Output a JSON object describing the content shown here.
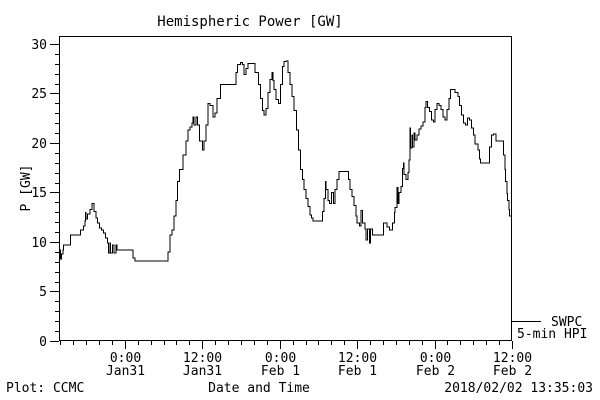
{
  "colors": {
    "line": "#000000",
    "background": "#ffffff",
    "text": "#000000"
  },
  "legend": {
    "source": "SWPC",
    "product": "5-min HPI"
  },
  "footer": {
    "left": "Plot: CCMC",
    "right": "2018/02/02 13:35:03"
  },
  "chart_data": {
    "type": "line",
    "title": "Hemispheric Power [GW]",
    "xlabel": "Date and Time",
    "ylabel": "P [GW]",
    "series_name": "SWPC 5-min HPI",
    "x_unit": "hours since 2018-01-31 00:00",
    "xlim": [
      -10.2,
      60
    ],
    "ylim": [
      0,
      30.8
    ],
    "grid": false,
    "x_ticks": [
      {
        "hours": 0,
        "time": "0:00",
        "date": "Jan31"
      },
      {
        "hours": 12,
        "time": "12:00",
        "date": "Jan31"
      },
      {
        "hours": 24,
        "time": "0:00",
        "date": "Feb 1"
      },
      {
        "hours": 36,
        "time": "12:00",
        "date": "Feb 1"
      },
      {
        "hours": 48,
        "time": "0:00",
        "date": "Feb 2"
      },
      {
        "hours": 60,
        "time": "12:00",
        "date": "Feb 2"
      }
    ],
    "x_minor_tick_step_hours": 2,
    "y_ticks": [
      0,
      5,
      10,
      15,
      20,
      25,
      30
    ],
    "y_minor_tick_step": 1,
    "series": [
      {
        "name": "SWPC 5-min HPI",
        "points": [
          [
            -10.2,
            9.2
          ],
          [
            -10.0,
            8.3
          ],
          [
            -9.8,
            8.8
          ],
          [
            -9.6,
            9.2
          ],
          [
            -9.5,
            9.7
          ],
          [
            -8.5,
            9.7
          ],
          [
            -8.4,
            10.7
          ],
          [
            -7.0,
            10.7
          ],
          [
            -6.9,
            11.2
          ],
          [
            -6.4,
            11.6
          ],
          [
            -6.2,
            12.1
          ],
          [
            -6.1,
            13.0
          ],
          [
            -6.0,
            12.3
          ],
          [
            -5.8,
            12.8
          ],
          [
            -5.4,
            13.3
          ],
          [
            -5.1,
            13.9
          ],
          [
            -4.8,
            13.1
          ],
          [
            -4.5,
            12.4
          ],
          [
            -4.2,
            11.9
          ],
          [
            -3.9,
            11.4
          ],
          [
            -3.6,
            11.2
          ],
          [
            -3.3,
            10.9
          ],
          [
            -3.0,
            10.4
          ],
          [
            -2.7,
            9.9
          ],
          [
            -2.5,
            8.9
          ],
          [
            -2.3,
            9.9
          ],
          [
            -2.2,
            8.9
          ],
          [
            -1.9,
            9.7
          ],
          [
            -1.7,
            8.9
          ],
          [
            -1.4,
            9.7
          ],
          [
            -1.2,
            9.2
          ],
          [
            1.1,
            9.2
          ],
          [
            1.3,
            8.4
          ],
          [
            1.6,
            8.1
          ],
          [
            6.5,
            8.1
          ],
          [
            6.7,
            9.0
          ],
          [
            7.0,
            10.7
          ],
          [
            7.3,
            11.2
          ],
          [
            7.6,
            12.6
          ],
          [
            7.9,
            14.2
          ],
          [
            8.2,
            16.1
          ],
          [
            8.5,
            17.3
          ],
          [
            9.0,
            18.8
          ],
          [
            9.5,
            20.2
          ],
          [
            9.8,
            21.3
          ],
          [
            10.1,
            21.6
          ],
          [
            10.4,
            22.0
          ],
          [
            10.6,
            22.6
          ],
          [
            10.7,
            21.8
          ],
          [
            11.0,
            22.6
          ],
          [
            11.3,
            21.8
          ],
          [
            11.6,
            20.2
          ],
          [
            12.0,
            19.3
          ],
          [
            12.3,
            20.2
          ],
          [
            12.6,
            21.8
          ],
          [
            12.9,
            24.0
          ],
          [
            13.2,
            23.8
          ],
          [
            13.7,
            22.6
          ],
          [
            14.0,
            23.0
          ],
          [
            14.3,
            24.5
          ],
          [
            14.8,
            25.9
          ],
          [
            17.1,
            25.9
          ],
          [
            17.2,
            27.1
          ],
          [
            17.5,
            27.9
          ],
          [
            17.9,
            28.1
          ],
          [
            18.2,
            27.9
          ],
          [
            18.5,
            26.9
          ],
          [
            18.8,
            27.5
          ],
          [
            19.1,
            28.0
          ],
          [
            19.9,
            28.0
          ],
          [
            20.2,
            27.1
          ],
          [
            20.7,
            25.9
          ],
          [
            21.0,
            24.5
          ],
          [
            21.3,
            23.3
          ],
          [
            21.6,
            22.8
          ],
          [
            21.9,
            23.5
          ],
          [
            22.2,
            25.1
          ],
          [
            22.5,
            26.4
          ],
          [
            22.8,
            27.1
          ],
          [
            23.0,
            26.3
          ],
          [
            23.1,
            25.4
          ],
          [
            23.4,
            24.4
          ],
          [
            23.8,
            24.0
          ],
          [
            24.1,
            25.9
          ],
          [
            24.4,
            27.7
          ],
          [
            24.7,
            28.2
          ],
          [
            25.0,
            28.3
          ],
          [
            25.3,
            27.1
          ],
          [
            25.6,
            25.9
          ],
          [
            25.9,
            24.7
          ],
          [
            26.2,
            23.3
          ],
          [
            26.6,
            21.3
          ],
          [
            26.9,
            19.3
          ],
          [
            27.2,
            17.3
          ],
          [
            27.5,
            16.3
          ],
          [
            27.8,
            15.3
          ],
          [
            28.1,
            14.4
          ],
          [
            28.4,
            13.6
          ],
          [
            28.7,
            12.7
          ],
          [
            28.9,
            12.4
          ],
          [
            29.2,
            12.1
          ],
          [
            30.3,
            12.1
          ],
          [
            30.6,
            13.1
          ],
          [
            30.9,
            14.4
          ],
          [
            31.1,
            16.1
          ],
          [
            31.2,
            15.3
          ],
          [
            31.5,
            14.2
          ],
          [
            31.7,
            13.9
          ],
          [
            32.0,
            15.0
          ],
          [
            32.3,
            13.9
          ],
          [
            32.6,
            15.3
          ],
          [
            32.9,
            16.3
          ],
          [
            33.2,
            17.1
          ],
          [
            34.5,
            17.1
          ],
          [
            34.7,
            16.3
          ],
          [
            34.9,
            15.3
          ],
          [
            35.2,
            14.6
          ],
          [
            35.5,
            13.7
          ],
          [
            35.8,
            12.6
          ],
          [
            36.0,
            11.9
          ],
          [
            36.4,
            11.6
          ],
          [
            36.6,
            13.2
          ],
          [
            36.8,
            11.9
          ],
          [
            37.2,
            11.3
          ],
          [
            37.4,
            10.2
          ],
          [
            37.6,
            11.3
          ],
          [
            37.9,
            9.9
          ],
          [
            38.1,
            11.3
          ],
          [
            38.4,
            10.7
          ],
          [
            39.9,
            10.7
          ],
          [
            40.1,
            11.9
          ],
          [
            40.6,
            11.5
          ],
          [
            41.0,
            11.2
          ],
          [
            41.5,
            11.9
          ],
          [
            41.8,
            13.0
          ],
          [
            41.9,
            13.5
          ],
          [
            42.2,
            15.5
          ],
          [
            42.3,
            13.9
          ],
          [
            42.5,
            15.0
          ],
          [
            42.8,
            15.6
          ],
          [
            43.0,
            17.4
          ],
          [
            43.2,
            18.0
          ],
          [
            43.3,
            16.8
          ],
          [
            43.6,
            16.3
          ],
          [
            43.9,
            17.0
          ],
          [
            44.0,
            18.3
          ],
          [
            44.2,
            21.5
          ],
          [
            44.3,
            19.5
          ],
          [
            44.5,
            20.8
          ],
          [
            44.6,
            19.6
          ],
          [
            44.8,
            21.0
          ],
          [
            45.0,
            20.3
          ],
          [
            45.3,
            20.8
          ],
          [
            45.6,
            21.4
          ],
          [
            45.9,
            21.7
          ],
          [
            46.2,
            22.1
          ],
          [
            46.5,
            23.6
          ],
          [
            46.7,
            24.2
          ],
          [
            46.9,
            23.6
          ],
          [
            47.2,
            23.2
          ],
          [
            47.5,
            22.3
          ],
          [
            47.8,
            22.1
          ],
          [
            48.1,
            23.4
          ],
          [
            48.4,
            24.0
          ],
          [
            48.7,
            23.8
          ],
          [
            49.0,
            23.4
          ],
          [
            49.3,
            22.6
          ],
          [
            49.6,
            22.3
          ],
          [
            49.9,
            23.4
          ],
          [
            50.2,
            24.5
          ],
          [
            50.5,
            25.4
          ],
          [
            50.9,
            25.4
          ],
          [
            51.2,
            25.1
          ],
          [
            51.6,
            24.7
          ],
          [
            51.9,
            23.8
          ],
          [
            52.2,
            22.8
          ],
          [
            52.5,
            22.0
          ],
          [
            52.8,
            21.8
          ],
          [
            53.1,
            22.5
          ],
          [
            53.4,
            22.3
          ],
          [
            53.7,
            21.5
          ],
          [
            54.0,
            20.8
          ],
          [
            54.3,
            19.9
          ],
          [
            54.7,
            19.3
          ],
          [
            55.0,
            18.4
          ],
          [
            55.1,
            18.0
          ],
          [
            56.2,
            18.0
          ],
          [
            56.5,
            19.6
          ],
          [
            56.8,
            20.8
          ],
          [
            57.1,
            20.9
          ],
          [
            57.5,
            20.2
          ],
          [
            58.5,
            20.2
          ],
          [
            58.7,
            18.8
          ],
          [
            58.9,
            17.3
          ],
          [
            59.0,
            16.1
          ],
          [
            59.2,
            14.9
          ],
          [
            59.3,
            14.2
          ],
          [
            59.5,
            13.3
          ],
          [
            59.6,
            12.6
          ],
          [
            59.9,
            12.0
          ]
        ]
      }
    ]
  }
}
